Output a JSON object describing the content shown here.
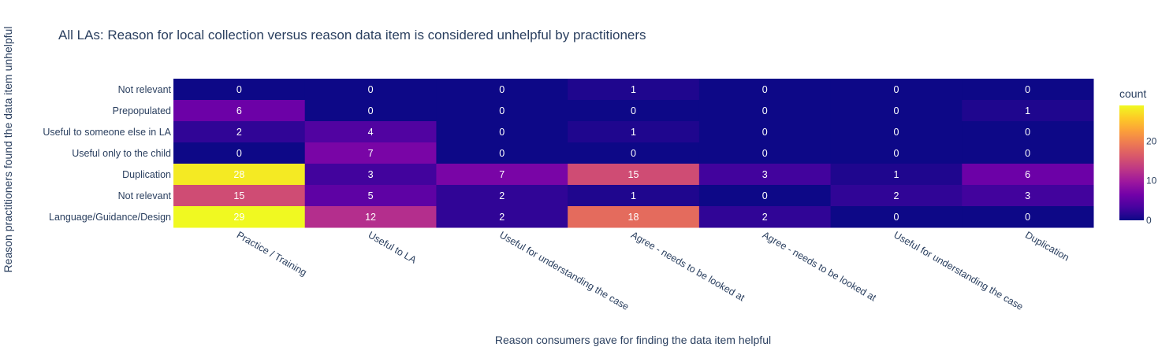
{
  "chart_data": {
    "type": "heatmap",
    "title": "All LAs: Reason for local collection versus reason data item is considered unhelpful by practitioners",
    "xlabel": "Reason consumers gave for finding the data item helpful",
    "ylabel": "Reason practitioners found the data item unhelpful",
    "x_categories": [
      "Practice / Training",
      "Useful to LA",
      "Useful for understanding the case",
      "Agree - needs to be looked at",
      "Agree - needs to be looked at",
      "Useful for understanding the case",
      "Duplication"
    ],
    "y_categories": [
      "Not relevant",
      "Prepopulated",
      "Useful to someone else in LA",
      "Useful only to the child",
      "Duplication",
      "Not relevant",
      "Language/Guidance/Design"
    ],
    "values": [
      [
        0,
        0,
        0,
        1,
        0,
        0,
        0
      ],
      [
        6,
        0,
        0,
        0,
        0,
        0,
        1
      ],
      [
        2,
        4,
        0,
        1,
        0,
        0,
        0
      ],
      [
        0,
        7,
        0,
        0,
        0,
        0,
        0
      ],
      [
        28,
        3,
        7,
        15,
        3,
        1,
        6
      ],
      [
        15,
        5,
        2,
        1,
        0,
        2,
        3
      ],
      [
        29,
        12,
        2,
        18,
        2,
        0,
        0
      ]
    ],
    "zlim": [
      0,
      29
    ],
    "colorbar": {
      "title": "count",
      "ticks": [
        0,
        10,
        20
      ]
    },
    "colorscale": [
      "#0d0887",
      "#46039f",
      "#7201a8",
      "#9c179e",
      "#bd3786",
      "#d8576b",
      "#ed7953",
      "#fb9f3a",
      "#fdca26",
      "#f0f921"
    ]
  }
}
